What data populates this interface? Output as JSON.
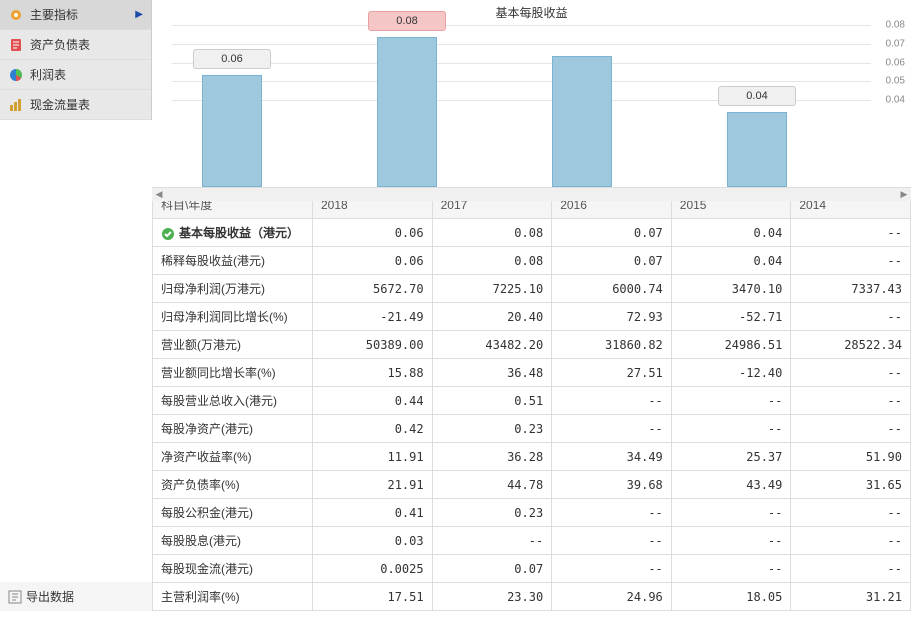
{
  "sidebar": {
    "items": [
      {
        "label": "主要指标",
        "icon": "gear",
        "color": "#f0a030",
        "active": true
      },
      {
        "label": "资产负债表",
        "icon": "doc",
        "color": "#e05050"
      },
      {
        "label": "利润表",
        "icon": "pie",
        "color": "#3080d0"
      },
      {
        "label": "现金流量表",
        "icon": "bars",
        "color": "#d0a030"
      }
    ],
    "export_label": "导出数据"
  },
  "chart": {
    "title": "基本每股收益",
    "type": "bar",
    "ylim": [
      0.04,
      0.08
    ],
    "yticks": [
      0.04,
      0.05,
      0.06,
      0.07,
      0.08
    ],
    "grid_color": "#e5e5e5",
    "bar_color": "#9ec8de",
    "bar_border": "#7bb3d0",
    "background": "#ffffff",
    "bars": [
      {
        "year": "2018",
        "value": 0.06,
        "label": "0.06",
        "show_label": true,
        "highlight": false
      },
      {
        "year": "2017",
        "value": 0.08,
        "label": "0.08",
        "show_label": true,
        "highlight": true
      },
      {
        "year": "2016",
        "value": 0.07,
        "label": "",
        "show_label": false,
        "highlight": false
      },
      {
        "year": "2015",
        "value": 0.04,
        "label": "0.04",
        "show_label": true,
        "highlight": false
      }
    ]
  },
  "table": {
    "header_label": "科目\\年度",
    "years": [
      "2018",
      "2017",
      "2016",
      "2015",
      "2014"
    ],
    "rows": [
      {
        "label": "基本每股收益（港元）",
        "selected": true,
        "values": [
          "0.06",
          "0.08",
          "0.07",
          "0.04",
          "--"
        ]
      },
      {
        "label": "稀释每股收益(港元)",
        "values": [
          "0.06",
          "0.08",
          "0.07",
          "0.04",
          "--"
        ]
      },
      {
        "label": "归母净利润(万港元)",
        "values": [
          "5672.70",
          "7225.10",
          "6000.74",
          "3470.10",
          "7337.43"
        ]
      },
      {
        "label": "归母净利润同比增长(%)",
        "values": [
          "-21.49",
          "20.40",
          "72.93",
          "-52.71",
          "--"
        ]
      },
      {
        "label": "营业额(万港元)",
        "values": [
          "50389.00",
          "43482.20",
          "31860.82",
          "24986.51",
          "28522.34"
        ]
      },
      {
        "label": "营业额同比增长率(%)",
        "values": [
          "15.88",
          "36.48",
          "27.51",
          "-12.40",
          "--"
        ]
      },
      {
        "label": "每股营业总收入(港元)",
        "values": [
          "0.44",
          "0.51",
          "--",
          "--",
          "--"
        ]
      },
      {
        "label": "每股净资产(港元)",
        "values": [
          "0.42",
          "0.23",
          "--",
          "--",
          "--"
        ]
      },
      {
        "label": "净资产收益率(%)",
        "values": [
          "11.91",
          "36.28",
          "34.49",
          "25.37",
          "51.90"
        ]
      },
      {
        "label": "资产负债率(%)",
        "values": [
          "21.91",
          "44.78",
          "39.68",
          "43.49",
          "31.65"
        ]
      },
      {
        "label": "每股公积金(港元)",
        "values": [
          "0.41",
          "0.23",
          "--",
          "--",
          "--"
        ]
      },
      {
        "label": "每股股息(港元)",
        "values": [
          "0.03",
          "--",
          "--",
          "--",
          "--"
        ]
      },
      {
        "label": "每股现金流(港元)",
        "values": [
          "0.0025",
          "0.07",
          "--",
          "--",
          "--"
        ]
      },
      {
        "label": "主营利润率(%)",
        "values": [
          "17.51",
          "23.30",
          "24.96",
          "18.05",
          "31.21"
        ]
      }
    ]
  }
}
